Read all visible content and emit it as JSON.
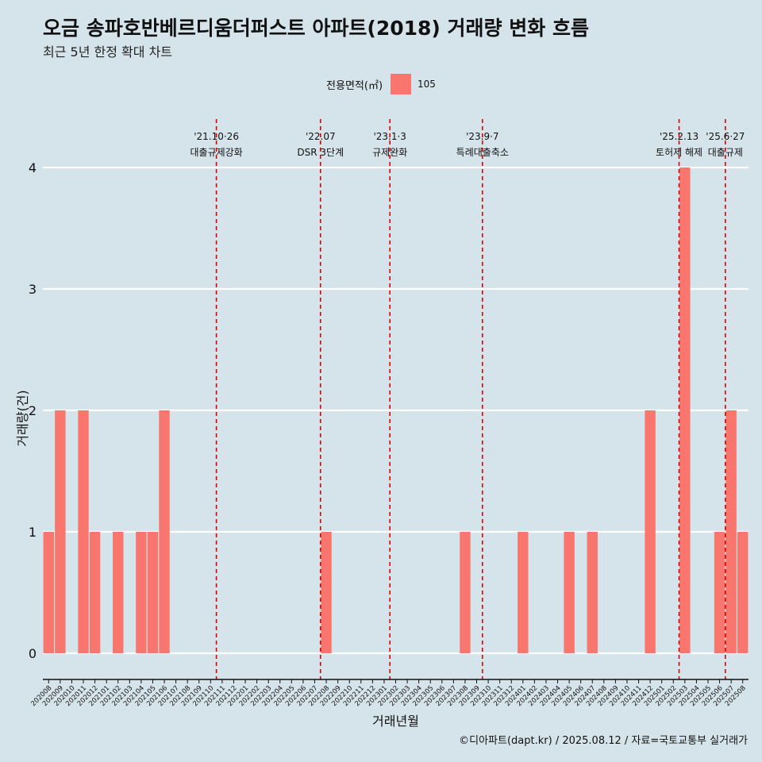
{
  "header": {
    "title": "오금 송파호반베르디움더퍼스트 아파트(2018) 거래량 변화 흐름",
    "subtitle": "최근 5년 한정 확대 차트"
  },
  "legend": {
    "title": "전용면적(㎡)",
    "items": [
      {
        "label": "105",
        "color": "#f8766d"
      }
    ]
  },
  "caption": "©디아파트(dapt.kr) / 2025.08.12 / 자료=국토교통부 실거래가",
  "chart_data": {
    "type": "bar",
    "xlabel": "거래년월",
    "ylabel": "거래량(건)",
    "ylim": [
      0,
      4
    ],
    "yticks": [
      "0",
      "1",
      "2",
      "3",
      "4"
    ],
    "bar_color": "#f8766d",
    "categories": [
      "202008",
      "202009",
      "202010",
      "202011",
      "202012",
      "202101",
      "202102",
      "202103",
      "202104",
      "202105",
      "202106",
      "202107",
      "202108",
      "202109",
      "202110",
      "202111",
      "202112",
      "202201",
      "202202",
      "202203",
      "202204",
      "202205",
      "202206",
      "202207",
      "202208",
      "202209",
      "202210",
      "202211",
      "202212",
      "202301",
      "202302",
      "202303",
      "202304",
      "202305",
      "202306",
      "202307",
      "202308",
      "202309",
      "202310",
      "202311",
      "202312",
      "202401",
      "202402",
      "202403",
      "202404",
      "202405",
      "202406",
      "202407",
      "202408",
      "202409",
      "202410",
      "202411",
      "202412",
      "202501",
      "202502",
      "202503",
      "202504",
      "202505",
      "202506",
      "202507",
      "202508"
    ],
    "values": [
      1,
      2,
      0,
      2,
      1,
      0,
      1,
      0,
      1,
      1,
      2,
      0,
      0,
      0,
      0,
      0,
      0,
      0,
      0,
      0,
      0,
      0,
      0,
      0,
      1,
      0,
      0,
      0,
      0,
      0,
      0,
      0,
      0,
      0,
      0,
      0,
      1,
      0,
      0,
      0,
      0,
      1,
      0,
      0,
      0,
      1,
      0,
      1,
      0,
      0,
      0,
      0,
      2,
      0,
      0,
      4,
      0,
      0,
      1,
      2,
      1
    ],
    "events": [
      {
        "after": "202110",
        "date": "'21.10·26",
        "label": "대출규제강화"
      },
      {
        "after": "202207",
        "date": "'22.07",
        "label": "DSR 3단계"
      },
      {
        "after": "202301",
        "date": "'23.1·3",
        "label": "규제완화"
      },
      {
        "after": "202309",
        "date": "'23.9·7",
        "label": "특례대출축소"
      },
      {
        "after": "202502",
        "date": "'25.2.13",
        "label": "토허제 해제"
      },
      {
        "after": "202506",
        "date": "'25.6·27",
        "label": "대출규제"
      }
    ]
  }
}
